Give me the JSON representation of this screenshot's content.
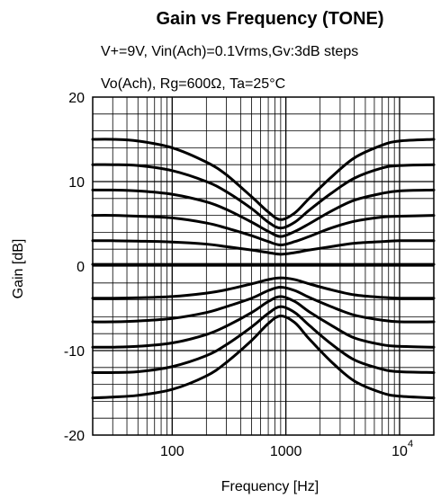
{
  "chart_data": {
    "type": "line",
    "title": "Gain vs Frequency  (TONE)",
    "subtitle_lines": [
      "V+=9V, Vin(Ach)=0.1Vrms,Gv:3dB steps",
      "Vo(Ach), Rg=600Ω, Ta=25°C"
    ],
    "xlabel": "Frequency  [Hz]",
    "ylabel": "Gain  [dB]",
    "x_scale": "log",
    "xlim": [
      20,
      20000
    ],
    "ylim": [
      -20,
      20
    ],
    "grid": true,
    "x_ticks": [
      {
        "value": 100,
        "label": "100"
      },
      {
        "value": 1000,
        "label": "1000"
      },
      {
        "value": 10000,
        "label": "10",
        "exponent": "4"
      }
    ],
    "y_ticks": [
      {
        "value": 20,
        "label": "20"
      },
      {
        "value": 10,
        "label": "10"
      },
      {
        "value": 0,
        "label": "0"
      },
      {
        "value": -10,
        "label": "-10"
      },
      {
        "value": -20,
        "label": "-20"
      }
    ],
    "x": [
      20,
      30,
      50,
      100,
      200,
      300,
      500,
      700,
      900,
      1200,
      1600,
      2500,
      4000,
      7000,
      10000,
      20000
    ],
    "series": [
      {
        "values": [
          15.0,
          15.0,
          14.8,
          14.0,
          12.3,
          10.8,
          8.2,
          6.4,
          5.5,
          6.3,
          8.0,
          10.5,
          12.8,
          14.3,
          14.8,
          15.0
        ]
      },
      {
        "values": [
          12.0,
          12.0,
          11.9,
          11.3,
          10.0,
          8.8,
          6.8,
          5.2,
          4.5,
          5.2,
          6.6,
          8.6,
          10.4,
          11.6,
          11.9,
          12.0
        ]
      },
      {
        "values": [
          9.0,
          9.0,
          8.9,
          8.5,
          7.6,
          6.7,
          5.2,
          4.1,
          3.5,
          4.1,
          5.0,
          6.5,
          7.8,
          8.6,
          8.9,
          9.0
        ]
      },
      {
        "values": [
          6.0,
          6.0,
          5.9,
          5.7,
          5.1,
          4.5,
          3.6,
          2.9,
          2.5,
          2.9,
          3.5,
          4.5,
          5.3,
          5.8,
          5.9,
          6.0
        ]
      },
      {
        "values": [
          3.0,
          3.0,
          2.95,
          2.85,
          2.6,
          2.3,
          1.9,
          1.6,
          1.4,
          1.6,
          1.9,
          2.3,
          2.7,
          2.9,
          3.0,
          3.0
        ]
      },
      {
        "values": [
          0.2,
          0.2,
          0.2,
          0.2,
          0.2,
          0.2,
          0.2,
          0.2,
          0.2,
          0.2,
          0.2,
          0.2,
          0.2,
          0.2,
          0.2,
          0.2
        ]
      },
      {
        "values": [
          -3.8,
          -3.8,
          -3.75,
          -3.6,
          -3.2,
          -2.8,
          -2.1,
          -1.6,
          -1.4,
          -1.6,
          -2.1,
          -2.8,
          -3.4,
          -3.7,
          -3.8,
          -3.8
        ]
      },
      {
        "values": [
          -6.6,
          -6.6,
          -6.5,
          -6.2,
          -5.5,
          -4.8,
          -3.8,
          -2.9,
          -2.5,
          -2.9,
          -3.7,
          -4.8,
          -5.8,
          -6.4,
          -6.6,
          -6.6
        ]
      },
      {
        "values": [
          -9.6,
          -9.6,
          -9.5,
          -9.1,
          -8.1,
          -7.1,
          -5.5,
          -4.2,
          -3.6,
          -4.2,
          -5.4,
          -7.0,
          -8.5,
          -9.3,
          -9.5,
          -9.6
        ]
      },
      {
        "values": [
          -12.6,
          -12.6,
          -12.5,
          -11.9,
          -10.6,
          -9.3,
          -7.2,
          -5.6,
          -4.8,
          -5.5,
          -7.0,
          -9.2,
          -11.1,
          -12.2,
          -12.5,
          -12.6
        ]
      },
      {
        "values": [
          -15.6,
          -15.5,
          -15.3,
          -14.6,
          -13.0,
          -11.4,
          -8.8,
          -6.8,
          -5.9,
          -6.7,
          -8.6,
          -11.3,
          -13.6,
          -15.0,
          -15.4,
          -15.6
        ]
      }
    ]
  }
}
